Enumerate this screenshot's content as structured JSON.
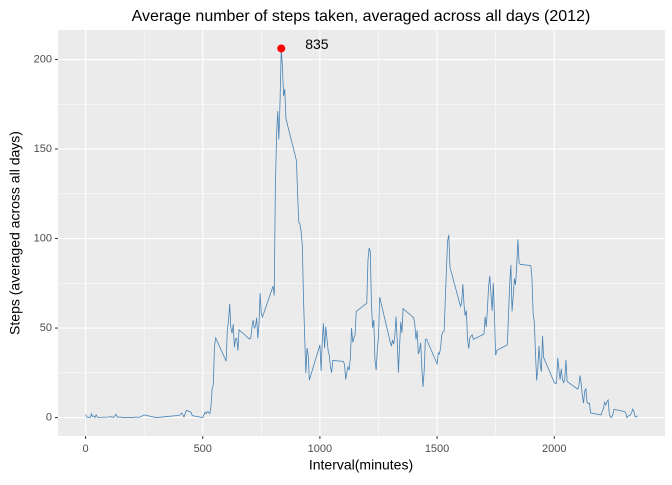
{
  "chart_data": {
    "type": "line",
    "title": "Average number of steps taken, averaged across all days  (2012)",
    "x_label": "Interval(minutes)",
    "y_label": "Steps (averaged across all days)",
    "xlim": [
      -117.75,
      2472.75
    ],
    "xticks": [
      0,
      500,
      1000,
      1500,
      2000
    ],
    "ylim": [
      -10.3,
      216.5
    ],
    "yticks": [
      0,
      50,
      100,
      150,
      200
    ],
    "grid": true,
    "series": [
      {
        "color": "#4682b4",
        "x": [
          0,
          5,
          10,
          15,
          20,
          25,
          30,
          35,
          40,
          45,
          50,
          55,
          100,
          105,
          110,
          115,
          120,
          125,
          130,
          135,
          140,
          145,
          150,
          155,
          200,
          215,
          230,
          250,
          300,
          320,
          340,
          400,
          410,
          420,
          430,
          440,
          450,
          455,
          500,
          505,
          510,
          515,
          520,
          525,
          530,
          535,
          540,
          545,
          550,
          555,
          600,
          605,
          610,
          615,
          620,
          625,
          630,
          635,
          640,
          645,
          650,
          655,
          700,
          705,
          710,
          715,
          720,
          725,
          730,
          735,
          740,
          745,
          750,
          755,
          800,
          805,
          810,
          815,
          820,
          825,
          830,
          835,
          840,
          845,
          850,
          855,
          900,
          905,
          910,
          915,
          920,
          925,
          930,
          935,
          940,
          945,
          950,
          955,
          1000,
          1005,
          1010,
          1015,
          1020,
          1025,
          1030,
          1035,
          1040,
          1045,
          1050,
          1055,
          1100,
          1105,
          1110,
          1115,
          1120,
          1125,
          1130,
          1135,
          1140,
          1145,
          1150,
          1155,
          1200,
          1205,
          1210,
          1215,
          1220,
          1225,
          1230,
          1235,
          1240,
          1245,
          1250,
          1255,
          1300,
          1305,
          1310,
          1315,
          1320,
          1325,
          1330,
          1335,
          1340,
          1345,
          1350,
          1355,
          1400,
          1405,
          1410,
          1415,
          1420,
          1425,
          1430,
          1435,
          1440,
          1445,
          1450,
          1455,
          1500,
          1505,
          1510,
          1515,
          1520,
          1525,
          1530,
          1535,
          1540,
          1545,
          1550,
          1555,
          1600,
          1605,
          1610,
          1615,
          1620,
          1625,
          1630,
          1635,
          1640,
          1645,
          1650,
          1655,
          1700,
          1705,
          1710,
          1715,
          1720,
          1725,
          1730,
          1735,
          1740,
          1745,
          1750,
          1755,
          1800,
          1805,
          1810,
          1815,
          1820,
          1825,
          1830,
          1835,
          1840,
          1845,
          1850,
          1855,
          1900,
          1905,
          1910,
          1915,
          1920,
          1925,
          1930,
          1935,
          1940,
          1945,
          1950,
          1955,
          2000,
          2005,
          2010,
          2015,
          2020,
          2025,
          2030,
          2035,
          2040,
          2045,
          2050,
          2055,
          2100,
          2105,
          2110,
          2115,
          2120,
          2125,
          2130,
          2135,
          2140,
          2145,
          2150,
          2155,
          2200,
          2205,
          2210,
          2215,
          2220,
          2225,
          2230,
          2235,
          2240,
          2245,
          2250,
          2255,
          2300,
          2305,
          2310,
          2315,
          2320,
          2325,
          2330,
          2335,
          2340,
          2345,
          2350,
          2355
        ],
        "values": [
          1.7,
          0.3,
          0.1,
          0.2,
          0.1,
          2.1,
          0.5,
          0.9,
          0,
          1.5,
          0.3,
          0.1,
          0.3,
          0.7,
          0.2,
          0.3,
          0,
          1.1,
          1.8,
          0.2,
          0.2,
          0.4,
          0.3,
          0,
          0,
          0.3,
          0.1,
          1.5,
          0,
          0.2,
          0.5,
          1.2,
          2.6,
          0.3,
          4.1,
          3.5,
          3,
          1.1,
          0,
          1.6,
          3,
          2.2,
          3.3,
          3,
          2.1,
          6,
          16,
          18.3,
          39.5,
          44.5,
          31.5,
          49.3,
          53.8,
          63.5,
          50,
          47.1,
          52.2,
          39.3,
          44,
          44.2,
          37.4,
          49,
          43.8,
          44.4,
          50.5,
          54.5,
          49.9,
          51,
          55.7,
          44.3,
          52.3,
          69.5,
          57.8,
          56.2,
          73.4,
          68.2,
          129.4,
          157.5,
          171.2,
          155.4,
          177.3,
          206.2,
          195.9,
          179.6,
          183.4,
          167,
          143.5,
          124,
          109.1,
          108.1,
          103.7,
          96,
          66.2,
          45.2,
          24.8,
          38.8,
          35,
          21,
          40.6,
          26.1,
          42.4,
          52.7,
          38.9,
          50.8,
          44.3,
          37.4,
          34.7,
          28.3,
          25.1,
          31.9,
          31.4,
          29.7,
          21.3,
          25.5,
          28.4,
          26.5,
          33.4,
          50,
          42,
          44.6,
          46,
          59.3,
          63.9,
          87.7,
          94.8,
          92.8,
          63.4,
          50.2,
          54.5,
          32.4,
          26.5,
          37.7,
          45.1,
          67.3,
          42.3,
          39.9,
          43.3,
          41,
          46.2,
          56.4,
          42.8,
          25.1,
          40,
          53.5,
          47.3,
          60.8,
          55.8,
          52,
          43.6,
          48.7,
          35.5,
          37.5,
          41.8,
          27.5,
          17.1,
          26.1,
          43.6,
          43.8,
          30,
          36.1,
          35.5,
          38.8,
          46,
          47.8,
          48.1,
          65.3,
          82.9,
          98.7,
          102.1,
          84,
          62.1,
          64.1,
          74.5,
          63.2,
          56.9,
          59.8,
          43.9,
          38.6,
          44.7,
          45.5,
          46.2,
          43.7,
          46.6,
          56.3,
          50.7,
          61.2,
          73.4,
          79.1,
          68.9,
          59.7,
          75.1,
          56.5,
          34.8,
          37.5,
          40.7,
          58,
          74.7,
          85.3,
          59.3,
          67.8,
          77.7,
          74.2,
          85.3,
          99.5,
          86.6,
          85.6,
          84.9,
          77.8,
          58,
          53.4,
          36.3,
          20.7,
          27.4,
          40,
          30.2,
          25.5,
          45.7,
          33.5,
          19.6,
          19,
          19.3,
          33.3,
          26.8,
          21.2,
          27.3,
          21.3,
          19.5,
          21.3,
          32.3,
          20.2,
          15.9,
          17.2,
          23.5,
          19.2,
          12.5,
          8,
          14.7,
          16.3,
          8.7,
          7.8,
          8.1,
          2.6,
          1.5,
          3.7,
          4.8,
          8.5,
          7.1,
          8.7,
          9.8,
          2.2,
          0.3,
          0.1,
          1.6,
          4.6,
          3.3,
          2.8,
          0,
          0.8,
          1,
          1.6,
          2.6,
          4.7,
          3.3,
          0.6,
          0.2,
          1.1
        ]
      }
    ],
    "highlight": {
      "x": 835,
      "y": 206.2,
      "color": "#ff0000"
    }
  }
}
